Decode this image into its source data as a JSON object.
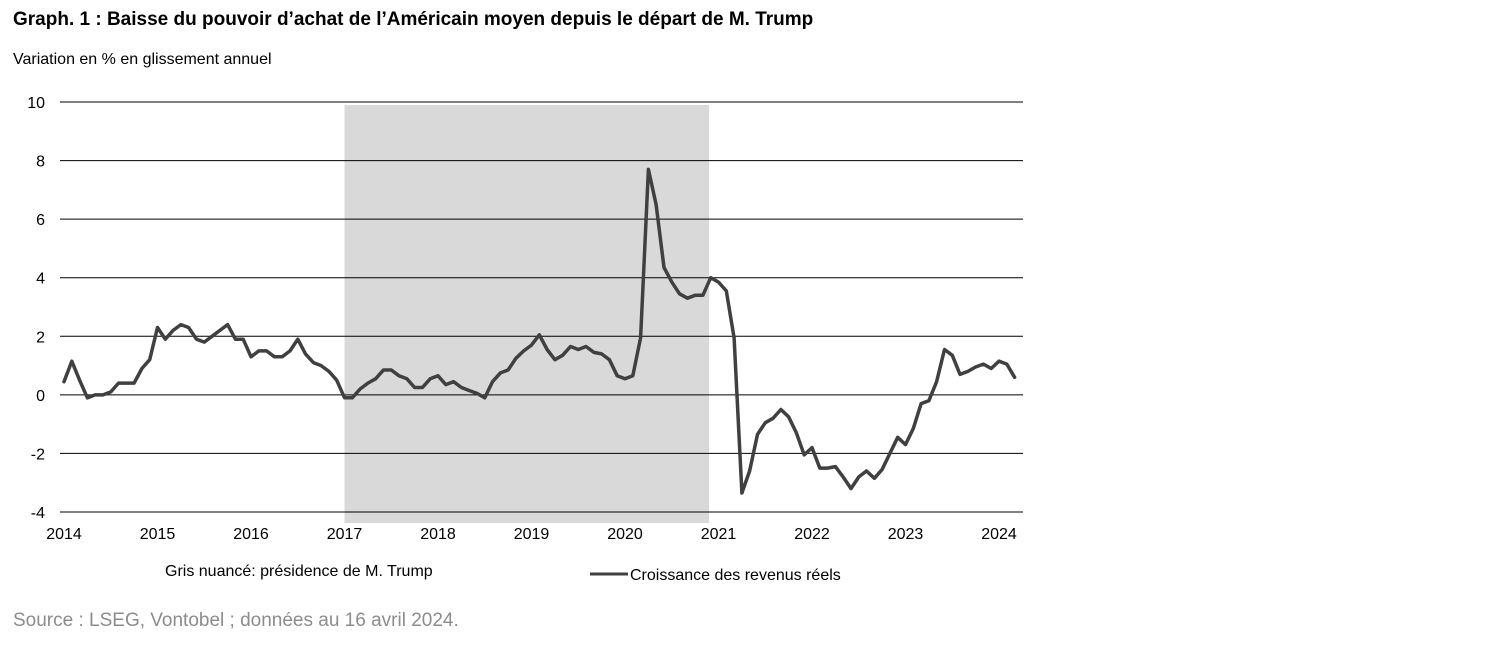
{
  "title": "Graph. 1 : Baisse du pouvoir d’achat de l’Américain moyen depuis le départ de M. Trump",
  "subtitle": "Variation en % en glissement annuel",
  "source": "Source : LSEG, Vontobel ; données au 16 avril 2024.",
  "chart_data": {
    "type": "line",
    "title": "Graph. 1 : Baisse du pouvoir d’achat de l’Américain moyen depuis le départ de M. Trump",
    "ylabel": "Variation en % en glissement annuel",
    "xlabel": "",
    "ylim": [
      -4,
      10
    ],
    "yticks": [
      "10",
      "8",
      "6",
      "4",
      "2",
      "0",
      "-2",
      "-4"
    ],
    "xlim": [
      2014,
      2024.25
    ],
    "xticks": [
      "2014",
      "2015",
      "2016",
      "2017",
      "2018",
      "2019",
      "2020",
      "2021",
      "2022",
      "2023",
      "2024"
    ],
    "grid": "horizontal",
    "colors": {
      "line": "#404040",
      "shade": "#d9d9d9",
      "grid": "#000000"
    },
    "shaded_region": {
      "label": "Gris nuancé: présidence de M. Trump",
      "from": 2017.0,
      "to": 2020.9
    },
    "series": [
      {
        "name": "Croissance des revenus réels",
        "x": [
          2014.0,
          2014.083,
          2014.167,
          2014.25,
          2014.333,
          2014.417,
          2014.5,
          2014.583,
          2014.667,
          2014.75,
          2014.833,
          2014.917,
          2015.0,
          2015.083,
          2015.167,
          2015.25,
          2015.333,
          2015.417,
          2015.5,
          2015.583,
          2015.667,
          2015.75,
          2015.833,
          2015.917,
          2016.0,
          2016.083,
          2016.167,
          2016.25,
          2016.333,
          2016.417,
          2016.5,
          2016.583,
          2016.667,
          2016.75,
          2016.833,
          2016.917,
          2017.0,
          2017.083,
          2017.167,
          2017.25,
          2017.333,
          2017.417,
          2017.5,
          2017.583,
          2017.667,
          2017.75,
          2017.833,
          2017.917,
          2018.0,
          2018.083,
          2018.167,
          2018.25,
          2018.333,
          2018.417,
          2018.5,
          2018.583,
          2018.667,
          2018.75,
          2018.833,
          2018.917,
          2019.0,
          2019.083,
          2019.167,
          2019.25,
          2019.333,
          2019.417,
          2019.5,
          2019.583,
          2019.667,
          2019.75,
          2019.833,
          2019.917,
          2020.0,
          2020.083,
          2020.167,
          2020.25,
          2020.333,
          2020.417,
          2020.5,
          2020.583,
          2020.667,
          2020.75,
          2020.833,
          2020.917,
          2021.0,
          2021.083,
          2021.167,
          2021.25,
          2021.333,
          2021.417,
          2021.5,
          2021.583,
          2021.667,
          2021.75,
          2021.833,
          2021.917,
          2022.0,
          2022.083,
          2022.167,
          2022.25,
          2022.333,
          2022.417,
          2022.5,
          2022.583,
          2022.667,
          2022.75,
          2022.833,
          2022.917,
          2023.0,
          2023.083,
          2023.167,
          2023.25,
          2023.333,
          2023.417,
          2023.5,
          2023.583,
          2023.667,
          2023.75,
          2023.833,
          2023.917,
          2024.0,
          2024.083,
          2024.167
        ],
        "values": [
          0.45,
          1.15,
          0.5,
          -0.1,
          0.0,
          0.0,
          0.1,
          0.4,
          0.4,
          0.4,
          0.9,
          1.2,
          2.3,
          1.9,
          2.2,
          2.4,
          2.3,
          1.9,
          1.8,
          2.0,
          2.2,
          2.4,
          1.9,
          1.9,
          1.3,
          1.5,
          1.5,
          1.3,
          1.3,
          1.5,
          1.9,
          1.4,
          1.1,
          1.0,
          0.8,
          0.5,
          -0.1,
          -0.1,
          0.2,
          0.4,
          0.55,
          0.85,
          0.85,
          0.65,
          0.55,
          0.25,
          0.25,
          0.55,
          0.65,
          0.35,
          0.45,
          0.25,
          0.15,
          0.05,
          -0.1,
          0.45,
          0.75,
          0.85,
          1.25,
          1.5,
          1.7,
          2.05,
          1.55,
          1.2,
          1.35,
          1.65,
          1.55,
          1.65,
          1.45,
          1.4,
          1.2,
          0.65,
          0.55,
          0.65,
          1.95,
          7.7,
          6.5,
          4.35,
          3.85,
          3.45,
          3.3,
          3.4,
          3.4,
          4.0,
          3.85,
          3.55,
          1.95,
          -3.35,
          -2.6,
          -1.35,
          -0.95,
          -0.8,
          -0.5,
          -0.75,
          -1.3,
          -2.05,
          -1.8,
          -2.5,
          -2.5,
          -2.45,
          -2.8,
          -3.2,
          -2.8,
          -2.6,
          -2.85,
          -2.55,
          -2.0,
          -1.45,
          -1.7,
          -1.15,
          -0.3,
          -0.2,
          0.45,
          1.55,
          1.35,
          0.7,
          0.8,
          0.95,
          1.05,
          0.9,
          1.15,
          1.05,
          0.6
        ]
      }
    ]
  }
}
